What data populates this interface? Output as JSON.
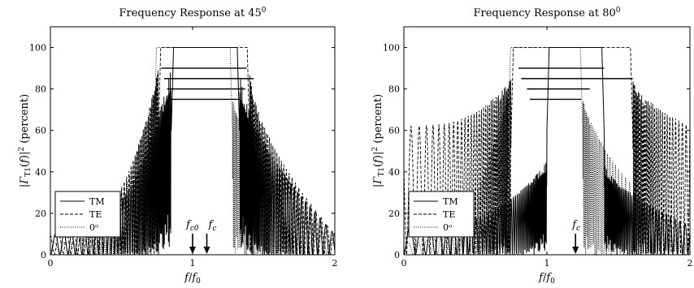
{
  "chart_data": [
    {
      "type": "line",
      "title": "Frequency Response at 45⁰",
      "xlabel": "f/f₀",
      "ylabel": "|Γ_T1(f)|² (percent)",
      "xlim": [
        0,
        2
      ],
      "ylim": [
        0,
        110
      ],
      "xticks": [
        "0",
        "1",
        "2"
      ],
      "yticks": [
        "0",
        "20",
        "40",
        "60",
        "80",
        "100"
      ],
      "grid": false,
      "legend_position": "bottom-left",
      "legend": [
        "TM",
        "TE",
        "0ᵒ"
      ],
      "series": [
        {
          "name": "TM",
          "style": "solid",
          "band": [
            0.85,
            1.33
          ],
          "ripple_peak": [
            0.1,
            0.9
          ],
          "sidelobe_max": 88
        },
        {
          "name": "TE",
          "style": "dashed",
          "band": [
            0.76,
            1.4
          ],
          "ripple_peak": [
            0.1,
            0.9
          ],
          "sidelobe_max": 97
        },
        {
          "name": "0ᵒ",
          "style": "dotted",
          "band": [
            0.73,
            1.28
          ],
          "ripple_peak": [
            0.06,
            0.8
          ],
          "sidelobe_max": 95
        }
      ],
      "reference_lines": [
        {
          "y": 90,
          "x": [
            0.78,
            1.38
          ]
        },
        {
          "y": 85,
          "x": [
            0.8,
            1.43
          ]
        },
        {
          "y": 80,
          "x": [
            0.82,
            1.37
          ]
        },
        {
          "y": 75,
          "x": [
            0.84,
            1.33
          ]
        }
      ],
      "annotations": [
        {
          "text": "f_c0",
          "x": 1.0
        },
        {
          "text": "f_c",
          "x": 1.1
        }
      ]
    },
    {
      "type": "line",
      "title": "Frequency Response at 80⁰",
      "xlabel": "f/f₀",
      "ylabel": "|Γ_T1(f)|² (percent)",
      "xlim": [
        0,
        2
      ],
      "ylim": [
        0,
        110
      ],
      "xticks": [
        "0",
        "1",
        "2"
      ],
      "yticks": [
        "0",
        "20",
        "40",
        "60",
        "80",
        "100"
      ],
      "grid": false,
      "legend_position": "bottom-left",
      "legend": [
        "TM",
        "TE",
        "0ᵒ"
      ],
      "series": [
        {
          "name": "TM",
          "style": "solid",
          "band": [
            1.0,
            1.4
          ],
          "ripple_peak": [
            0.14,
            0.45
          ],
          "sidelobe_max": 82
        },
        {
          "name": "TE",
          "style": "dashed",
          "band": [
            0.75,
            1.6
          ],
          "ripple_peak": [
            0.62,
            0.85
          ],
          "sidelobe_max": 96
        },
        {
          "name": "0ᵒ",
          "style": "dotted",
          "band": [
            0.73,
            1.25
          ],
          "ripple_peak": [
            0.06,
            0.8
          ],
          "sidelobe_max": 95
        }
      ],
      "reference_lines": [
        {
          "y": 90,
          "x": [
            0.8,
            1.4
          ]
        },
        {
          "y": 85,
          "x": [
            0.82,
            1.6
          ]
        },
        {
          "y": 80,
          "x": [
            0.86,
            1.3
          ]
        },
        {
          "y": 75,
          "x": [
            0.88,
            1.24
          ]
        }
      ],
      "annotations": [
        {
          "text": "f_c",
          "x": 1.2
        }
      ]
    }
  ]
}
